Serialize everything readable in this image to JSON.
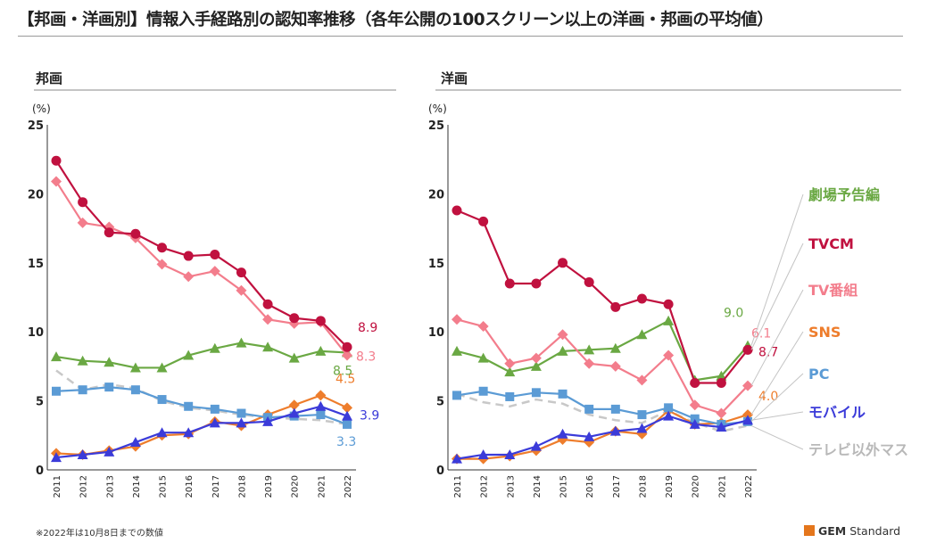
{
  "title": "【邦画・洋画別】情報入手経路別の認知率推移（各年公開の100スクリーン以上の洋画・邦画の平均値）",
  "footnote": "※2022年は10月8日までの数値",
  "brand": {
    "gem": "GEM",
    "rest": " Standard",
    "accent_color": "#e4761c"
  },
  "chart_data": [
    {
      "type": "line",
      "panel_title": "邦画",
      "ylabel": "(%)",
      "ylim": [
        0,
        25
      ],
      "yticks": [
        "0",
        "5",
        "10",
        "15",
        "20",
        "25"
      ],
      "x": [
        "2011",
        "2012",
        "2013",
        "2014",
        "2015",
        "2016",
        "2017",
        "2018",
        "2019",
        "2020",
        "2021",
        "2022"
      ],
      "series": [
        {
          "key": "tv_outside",
          "color": "#c8c8c8",
          "marker": "none",
          "dash": true,
          "values": [
            7.2,
            5.8,
            6.2,
            5.9,
            5.0,
            4.5,
            4.3,
            4.0,
            3.8,
            3.7,
            3.6,
            3.3
          ],
          "end_label": ""
        },
        {
          "key": "sns",
          "color": "#ee7d2c",
          "marker": "diamond",
          "values": [
            1.2,
            1.1,
            1.4,
            1.7,
            2.5,
            2.6,
            3.5,
            3.2,
            4.0,
            4.7,
            5.4,
            4.5
          ],
          "end_label": "4.5"
        },
        {
          "key": "pc",
          "color": "#5b9bd5",
          "marker": "square",
          "values": [
            5.7,
            5.8,
            6.0,
            5.8,
            5.1,
            4.6,
            4.4,
            4.1,
            3.8,
            3.9,
            4.0,
            3.3
          ],
          "end_label": "3.3"
        },
        {
          "key": "mobile",
          "color": "#3b3bd9",
          "marker": "triangle",
          "values": [
            0.9,
            1.1,
            1.3,
            2.0,
            2.7,
            2.7,
            3.4,
            3.4,
            3.5,
            4.1,
            4.6,
            3.9
          ],
          "end_label": "3.9"
        },
        {
          "key": "trailer",
          "color": "#6aa843",
          "marker": "triangle",
          "values": [
            8.2,
            7.9,
            7.8,
            7.4,
            7.4,
            8.3,
            8.8,
            9.2,
            8.9,
            8.1,
            8.6,
            8.5
          ],
          "end_label": "8.5"
        },
        {
          "key": "tv_program",
          "color": "#f37d8c",
          "marker": "diamond",
          "values": [
            20.9,
            17.9,
            17.6,
            16.8,
            14.9,
            14.0,
            14.4,
            13.0,
            10.9,
            10.6,
            10.7,
            8.3
          ],
          "end_label": "8.3"
        },
        {
          "key": "tvcm",
          "color": "#c0113f",
          "marker": "circle",
          "values": [
            22.4,
            19.4,
            17.2,
            17.1,
            16.1,
            15.5,
            15.6,
            14.3,
            12.0,
            11.0,
            10.8,
            8.9
          ],
          "end_label": "8.9"
        }
      ]
    },
    {
      "type": "line",
      "panel_title": "洋画",
      "ylabel": "(%)",
      "ylim": [
        0,
        25
      ],
      "yticks": [
        "0",
        "5",
        "10",
        "15",
        "20",
        "25"
      ],
      "x": [
        "2011",
        "2012",
        "2013",
        "2014",
        "2015",
        "2016",
        "2017",
        "2018",
        "2019",
        "2020",
        "2021",
        "2022"
      ],
      "series": [
        {
          "key": "tv_outside",
          "color": "#c8c8c8",
          "marker": "none",
          "dash": true,
          "values": [
            5.5,
            4.9,
            4.6,
            5.1,
            4.8,
            4.0,
            3.6,
            3.4,
            4.3,
            3.4,
            2.8,
            3.2
          ],
          "end_label": ""
        },
        {
          "key": "sns",
          "color": "#ee7d2c",
          "marker": "diamond",
          "values": [
            0.8,
            0.8,
            1.0,
            1.4,
            2.2,
            2.0,
            2.8,
            2.6,
            4.3,
            3.3,
            3.4,
            4.0
          ],
          "end_label": "4.0"
        },
        {
          "key": "pc",
          "color": "#5b9bd5",
          "marker": "square",
          "values": [
            5.4,
            5.7,
            5.3,
            5.6,
            5.5,
            4.4,
            4.4,
            4.0,
            4.5,
            3.7,
            3.3,
            3.5
          ],
          "end_label": ""
        },
        {
          "key": "mobile",
          "color": "#3b3bd9",
          "marker": "triangle",
          "values": [
            0.8,
            1.1,
            1.1,
            1.7,
            2.6,
            2.4,
            2.8,
            3.0,
            3.9,
            3.3,
            3.1,
            3.6
          ],
          "end_label": ""
        },
        {
          "key": "trailer",
          "color": "#6aa843",
          "marker": "triangle",
          "values": [
            8.6,
            8.1,
            7.1,
            7.5,
            8.6,
            8.7,
            8.8,
            9.8,
            10.8,
            6.5,
            6.8,
            9.0
          ],
          "end_label": "9.0"
        },
        {
          "key": "tv_program",
          "color": "#f37d8c",
          "marker": "diamond",
          "values": [
            10.9,
            10.4,
            7.7,
            8.1,
            9.8,
            7.7,
            7.5,
            6.5,
            8.3,
            4.7,
            4.1,
            6.1
          ],
          "end_label": "6.1"
        },
        {
          "key": "tvcm",
          "color": "#c0113f",
          "marker": "circle",
          "values": [
            18.8,
            18.0,
            13.5,
            13.5,
            15.0,
            13.6,
            11.8,
            12.4,
            12.0,
            6.3,
            6.3,
            8.7
          ],
          "end_label": "8.7"
        }
      ]
    }
  ],
  "legend": [
    {
      "key": "trailer",
      "label": "劇場予告編",
      "color": "#6aa843"
    },
    {
      "key": "tvcm",
      "label": "TVCM",
      "color": "#c0113f"
    },
    {
      "key": "tv_program",
      "label": "TV番組",
      "color": "#f37d8c"
    },
    {
      "key": "sns",
      "label": "SNS",
      "color": "#ee7d2c"
    },
    {
      "key": "pc",
      "label": "PC",
      "color": "#5b9bd5"
    },
    {
      "key": "mobile",
      "label": "モバイル",
      "color": "#3b3bd9"
    },
    {
      "key": "tv_outside",
      "label": "テレビ以外マス",
      "color": "#b8b8b8"
    }
  ]
}
